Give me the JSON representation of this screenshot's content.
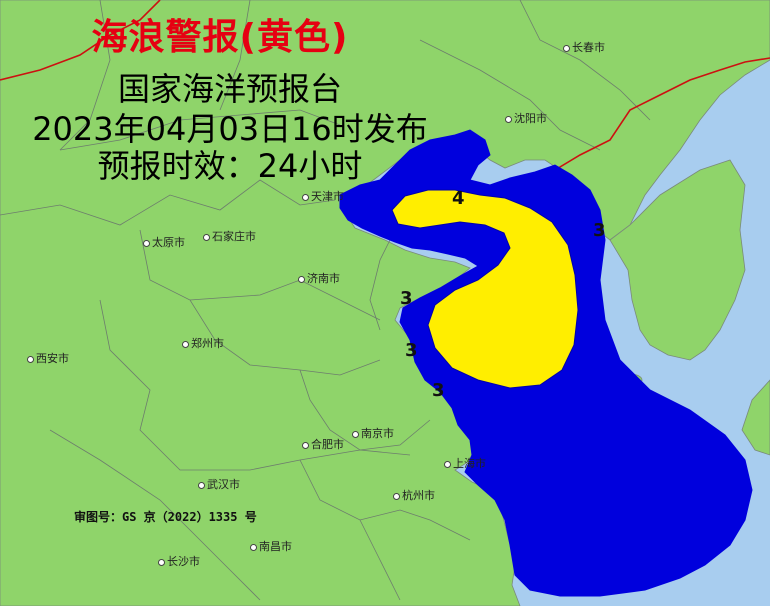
{
  "warning": {
    "title": "海浪警报(黄色)",
    "issuer": "国家海洋预报台",
    "issue_time": "2023年04月03日16时发布",
    "validity": "预报时效：24小时"
  },
  "review_number": "审图号：GS 京（2022）1335 号",
  "cities": [
    {
      "id": "changchun",
      "name": "长春市"
    },
    {
      "id": "shenyang",
      "name": "沈阳市"
    },
    {
      "id": "tianjin",
      "name": "天津市"
    },
    {
      "id": "taiyuan",
      "name": "太原市"
    },
    {
      "id": "shijiazhuang",
      "name": "石家庄市"
    },
    {
      "id": "jinan",
      "name": "济南市"
    },
    {
      "id": "zhengzhou",
      "name": "郑州市"
    },
    {
      "id": "xian",
      "name": "西安市"
    },
    {
      "id": "hefei",
      "name": "合肥市"
    },
    {
      "id": "nanjing",
      "name": "南京市"
    },
    {
      "id": "shanghai",
      "name": "上海市"
    },
    {
      "id": "wuhan",
      "name": "武汉市"
    },
    {
      "id": "hangzhou",
      "name": "杭州市"
    },
    {
      "id": "nanchang",
      "name": "南昌市"
    },
    {
      "id": "changsha",
      "name": "长沙市"
    }
  ],
  "wave_labels": [
    "4",
    "3",
    "3",
    "3",
    "3"
  ],
  "legend_colors": {
    "land": "#8fd46a",
    "sea": "#a8cdef",
    "wave_3m_zone": "#0000dd",
    "wave_4m_zone": "#ffee00",
    "title_red": "#e60012",
    "border_red": "#cc1111"
  }
}
